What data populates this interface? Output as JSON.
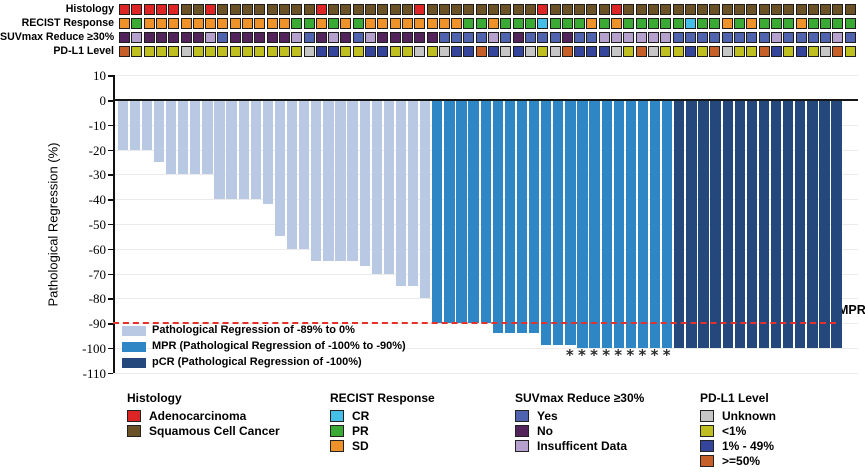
{
  "tracks": [
    {
      "label": "Histology",
      "cells": [
        "A",
        "A",
        "A",
        "A",
        "A",
        "S",
        "S",
        "A",
        "S",
        "S",
        "S",
        "S",
        "S",
        "S",
        "S",
        "S",
        "A",
        "S",
        "S",
        "S",
        "S",
        "S",
        "S",
        "S",
        "A",
        "S",
        "S",
        "S",
        "S",
        "S",
        "S",
        "S",
        "S",
        "S",
        "A",
        "S",
        "S",
        "S",
        "S",
        "S",
        "A",
        "S",
        "S",
        "S",
        "S",
        "S",
        "S",
        "S",
        "S",
        "S",
        "S",
        "S",
        "S",
        "S",
        "S",
        "S",
        "S",
        "S",
        "S",
        "S"
      ]
    },
    {
      "label": "RECIST Response",
      "cells": [
        "D",
        "P",
        "D",
        "D",
        "D",
        "D",
        "D",
        "D",
        "D",
        "D",
        "D",
        "D",
        "D",
        "D",
        "P",
        "P",
        "D",
        "P",
        "D",
        "P",
        "D",
        "D",
        "D",
        "D",
        "D",
        "D",
        "D",
        "D",
        "P",
        "P",
        "D",
        "P",
        "P",
        "P",
        "C",
        "P",
        "P",
        "P",
        "D",
        "P",
        "D",
        "P",
        "P",
        "P",
        "P",
        "P",
        "C",
        "P",
        "P",
        "D",
        "P",
        "D",
        "P",
        "P",
        "P",
        "D",
        "P",
        "P",
        "P",
        "P"
      ]
    },
    {
      "label": "SUVmax Reduce ≥30%",
      "cells": [
        "N",
        "I",
        "N",
        "N",
        "N",
        "N",
        "N",
        "I",
        "Y",
        "N",
        "N",
        "N",
        "N",
        "N",
        "I",
        "Y",
        "N",
        "I",
        "N",
        "Y",
        "I",
        "N",
        "N",
        "N",
        "N",
        "N",
        "Y",
        "Y",
        "Y",
        "Y",
        "I",
        "Y",
        "N",
        "Y",
        "Y",
        "Y",
        "N",
        "Y",
        "Y",
        "I",
        "I",
        "I",
        "I",
        "I",
        "I",
        "Y",
        "Y",
        "Y",
        "Y",
        "Y",
        "Y",
        "Y",
        "Y",
        "I",
        "Y",
        "Y",
        "Y",
        "Y",
        "I",
        "Y"
      ]
    },
    {
      "label": "PD-L1 Level",
      "cells": [
        "H",
        "L",
        "L",
        "L",
        "L",
        "U",
        "L",
        "L",
        "L",
        "L",
        "L",
        "L",
        "L",
        "L",
        "L",
        "U",
        "M",
        "M",
        "L",
        "L",
        "M",
        "M",
        "L",
        "L",
        "U",
        "L",
        "U",
        "M",
        "M",
        "H",
        "M",
        "U",
        "M",
        "U",
        "L",
        "U",
        "H",
        "M",
        "M",
        "M",
        "U",
        "L",
        "H",
        "U",
        "L",
        "L",
        "M",
        "L",
        "H",
        "U",
        "L",
        "L",
        "H",
        "M",
        "L",
        "M",
        "L",
        "U",
        "H",
        "L"
      ]
    }
  ],
  "track_color_map": {
    "A": "#dd2525",
    "S": "#6b5226",
    "C": "#45bfe8",
    "P": "#3aaa35",
    "D": "#f0922a",
    "Y": "#5063ae",
    "N": "#53235c",
    "I": "#b5a0ce",
    "U": "#c6c6c6",
    "L": "#bfbf1f",
    "M": "#34459b",
    "H": "#c75f28"
  },
  "chart_data": {
    "type": "bar",
    "title": "",
    "xlabel": "",
    "ylabel": "Pathological Regression (%)",
    "ylim": [
      -110,
      10
    ],
    "yticks": [
      10,
      0,
      -10,
      -20,
      -30,
      -40,
      -50,
      -60,
      -70,
      -80,
      -90,
      -100,
      -110
    ],
    "grid": "horizontal",
    "reference_line": {
      "y": -90,
      "label": "MPR",
      "color": "#e8302a",
      "style": "dashed"
    },
    "series": [
      {
        "name": "Pathological Regression of -89% to 0%",
        "color": "#b9c9e3",
        "values": [
          -20,
          -20,
          -20,
          -25,
          -30,
          -30,
          -30,
          -30,
          -40,
          -40,
          -40,
          -40,
          -42,
          -55,
          -60,
          -60,
          -65,
          -65,
          -65,
          -65,
          -67,
          -70,
          -70,
          -75,
          -75,
          -80
        ]
      },
      {
        "name": "MPR (Pathological Regression of -100% to -90%)",
        "color": "#2e86c4",
        "values": [
          -90,
          -90,
          -90,
          -90,
          -90,
          -94,
          -94,
          -94,
          -94,
          -99,
          -99,
          -99,
          -100,
          -100,
          -100,
          -100,
          -100,
          -100,
          -100,
          -100
        ]
      },
      {
        "name": "pCR (Pathological Regression of -100%)",
        "color": "#24487c",
        "values": [
          -100,
          -100,
          -100,
          -100,
          -100,
          -100,
          -100,
          -100,
          -100,
          -100,
          -100,
          -100,
          -100,
          -100
        ]
      }
    ],
    "asterisk_bar_indices": [
      37,
      38,
      39,
      40,
      41,
      42,
      43,
      44,
      45
    ],
    "asterisk_symbol": "*"
  },
  "plot_legend": [
    {
      "label": "Pathological Regression of -89% to 0%",
      "color": "#b9c9e3"
    },
    {
      "label": "MPR (Pathological Regression of -100% to -90%)",
      "color": "#2e86c4"
    },
    {
      "label": "pCR (Pathological Regression of -100%)",
      "color": "#24487c"
    }
  ],
  "bottom_legend": [
    {
      "title": "Histology",
      "items": [
        {
          "label": "Adenocarcinoma",
          "color": "#dd2525"
        },
        {
          "label": "Squamous Cell Cancer",
          "color": "#6b5226"
        }
      ]
    },
    {
      "title": "RECIST Response",
      "items": [
        {
          "label": "CR",
          "color": "#45bfe8"
        },
        {
          "label": "PR",
          "color": "#3aaa35"
        },
        {
          "label": "SD",
          "color": "#f0922a"
        }
      ]
    },
    {
      "title": "SUVmax Reduce ≥30%",
      "items": [
        {
          "label": "Yes",
          "color": "#5063ae"
        },
        {
          "label": "No",
          "color": "#53235c"
        },
        {
          "label": "Insufficent Data",
          "color": "#b5a0ce"
        }
      ]
    },
    {
      "title": "PD-L1 Level",
      "items": [
        {
          "label": "Unknown",
          "color": "#c6c6c6"
        },
        {
          "label": "<1%",
          "color": "#bfbf1f"
        },
        {
          "label": "1% - 49%",
          "color": "#34459b"
        },
        {
          "label": ">=50%",
          "color": "#c75f28"
        }
      ]
    }
  ]
}
